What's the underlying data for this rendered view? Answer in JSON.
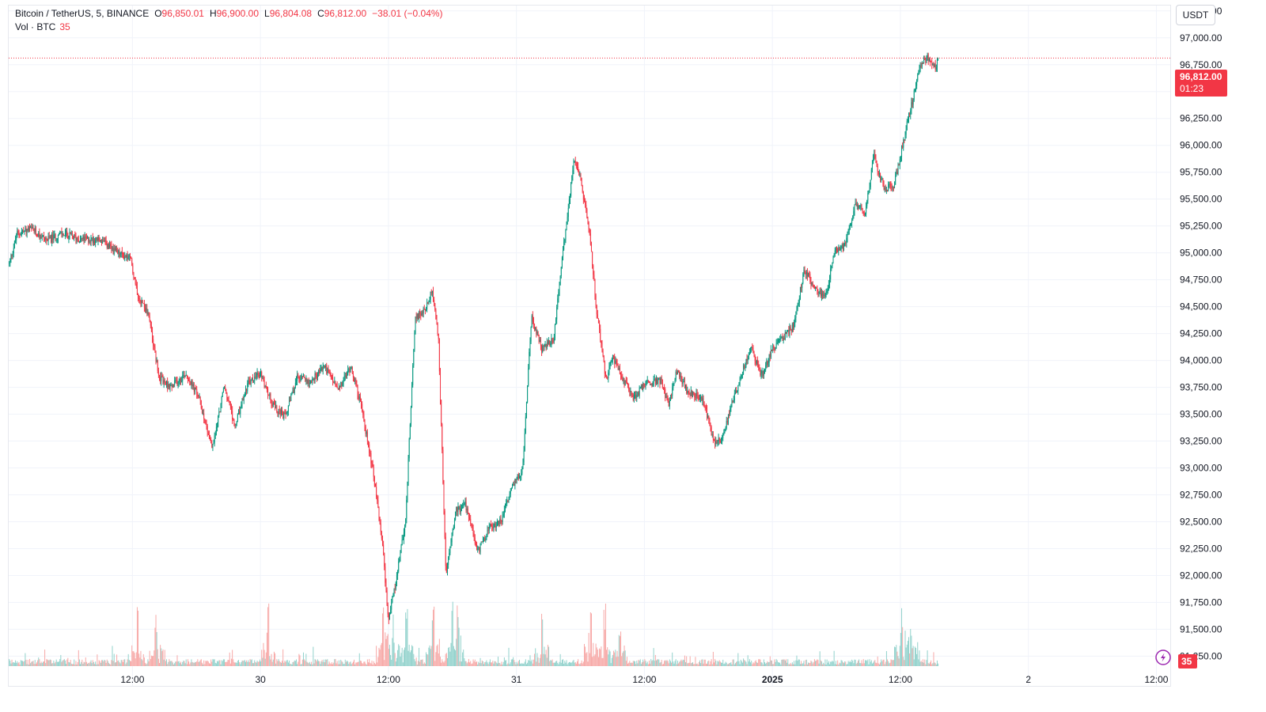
{
  "legend": {
    "symbol": "Bitcoin / TetherUS",
    "interval": "5",
    "exchange": "BINANCE",
    "open_label": "O",
    "open": "96,850.01",
    "high_label": "H",
    "high": "96,900.00",
    "low_label": "L",
    "low": "96,804.08",
    "close_label": "C",
    "close": "96,812.00",
    "change": "−38.01 (−0.04%)",
    "volume_label": "Vol · BTC",
    "volume": "35"
  },
  "currency_button": "USDT",
  "last_price_label": "96,812.00",
  "countdown": "01:23",
  "volume_badge": "35",
  "colors": {
    "up": "#089981",
    "down": "#f23645",
    "up_volume": "#92d2cc",
    "down_volume": "#f7a9a7",
    "grid": "#f0f3fa",
    "price_line": "#f23645"
  },
  "chart_data": {
    "type": "candlestick",
    "symbol": "Bitcoin / TetherUS",
    "timeframe": "5",
    "exchange": "BINANCE",
    "y_axis_ticks": [
      "97,250.00",
      "97,000.00",
      "96,750.00",
      "96,500.00",
      "96,250.00",
      "96,000.00",
      "95,750.00",
      "95,500.00",
      "95,250.00",
      "95,000.00",
      "94,750.00",
      "94,500.00",
      "94,250.00",
      "94,000.00",
      "93,750.00",
      "93,500.00",
      "93,250.00",
      "93,000.00",
      "92,750.00",
      "92,500.00",
      "92,250.00",
      "92,000.00",
      "91,750.00",
      "91,500.00",
      "91,250.00"
    ],
    "y_axis_values": [
      97250,
      97000,
      96750,
      96500,
      96250,
      96000,
      95750,
      95500,
      95250,
      95000,
      94750,
      94500,
      94250,
      94000,
      93750,
      93500,
      93250,
      93000,
      92750,
      92500,
      92250,
      92000,
      91750,
      91500,
      91250
    ],
    "ylim": [
      91150,
      97300
    ],
    "x_axis_ticks": [
      {
        "label": "12:00",
        "hours": 16
      },
      {
        "label": "30",
        "hours": 28
      },
      {
        "label": "12:00",
        "hours": 40
      },
      {
        "label": "31",
        "hours": 52
      },
      {
        "label": "12:00",
        "hours": 64
      },
      {
        "label": "2025",
        "hours": 76,
        "bold": true
      },
      {
        "label": "12:00",
        "hours": 88
      },
      {
        "label": "2",
        "hours": 100
      },
      {
        "label": "12:00",
        "hours": 112
      }
    ],
    "x_range_hours": [
      4.4,
      113.3
    ],
    "last_price": 96812.0,
    "price_path": [
      [
        4.45,
        94900
      ],
      [
        5.2,
        95180
      ],
      [
        6.5,
        95220
      ],
      [
        8.0,
        95120
      ],
      [
        9.5,
        95180
      ],
      [
        11.0,
        95130
      ],
      [
        13.0,
        95120
      ],
      [
        14.5,
        95000
      ],
      [
        15.8,
        94950
      ],
      [
        16.5,
        94620
      ],
      [
        17.5,
        94420
      ],
      [
        18.5,
        93850
      ],
      [
        19.6,
        93750
      ],
      [
        21.0,
        93880
      ],
      [
        22.2,
        93660
      ],
      [
        23.5,
        93180
      ],
      [
        24.6,
        93760
      ],
      [
        25.6,
        93380
      ],
      [
        26.8,
        93780
      ],
      [
        28.0,
        93880
      ],
      [
        29.2,
        93580
      ],
      [
        30.3,
        93470
      ],
      [
        31.5,
        93850
      ],
      [
        32.7,
        93800
      ],
      [
        34.0,
        93950
      ],
      [
        35.3,
        93720
      ],
      [
        36.5,
        93950
      ],
      [
        37.5,
        93550
      ],
      [
        38.5,
        93000
      ],
      [
        39.4,
        92350
      ],
      [
        40.0,
        91580
      ],
      [
        40.8,
        92000
      ],
      [
        41.6,
        92520
      ],
      [
        42.5,
        94380
      ],
      [
        43.4,
        94460
      ],
      [
        44.1,
        94650
      ],
      [
        44.7,
        94180
      ],
      [
        45.4,
        92000
      ],
      [
        46.3,
        92600
      ],
      [
        47.2,
        92650
      ],
      [
        48.4,
        92220
      ],
      [
        49.3,
        92420
      ],
      [
        50.6,
        92520
      ],
      [
        51.6,
        92820
      ],
      [
        52.6,
        93000
      ],
      [
        53.4,
        94400
      ],
      [
        54.4,
        94100
      ],
      [
        55.5,
        94200
      ],
      [
        56.3,
        94950
      ],
      [
        57.4,
        95860
      ],
      [
        58.1,
        95640
      ],
      [
        58.9,
        95150
      ],
      [
        59.5,
        94480
      ],
      [
        60.4,
        93820
      ],
      [
        61.0,
        94030
      ],
      [
        62.0,
        93820
      ],
      [
        63.0,
        93650
      ],
      [
        64.0,
        93780
      ],
      [
        65.5,
        93820
      ],
      [
        66.3,
        93580
      ],
      [
        67.0,
        93900
      ],
      [
        68.0,
        93720
      ],
      [
        69.5,
        93630
      ],
      [
        70.5,
        93250
      ],
      [
        71.3,
        93280
      ],
      [
        72.0,
        93520
      ],
      [
        73.0,
        93850
      ],
      [
        74.0,
        94120
      ],
      [
        75.0,
        93860
      ],
      [
        76.0,
        94100
      ],
      [
        77.0,
        94220
      ],
      [
        78.0,
        94320
      ],
      [
        79.0,
        94850
      ],
      [
        80.0,
        94670
      ],
      [
        81.0,
        94590
      ],
      [
        81.8,
        95000
      ],
      [
        82.8,
        95060
      ],
      [
        83.8,
        95480
      ],
      [
        84.7,
        95360
      ],
      [
        85.5,
        95900
      ],
      [
        86.5,
        95600
      ],
      [
        87.4,
        95620
      ],
      [
        88.3,
        96050
      ],
      [
        89.2,
        96450
      ],
      [
        89.8,
        96750
      ],
      [
        90.6,
        96820
      ],
      [
        91.2,
        96720
      ],
      [
        91.6,
        96812
      ]
    ],
    "volume_spikes_hours": [
      16.5,
      18.2,
      28.7,
      39.5,
      40.4,
      41.7,
      44.2,
      46.0,
      46.5,
      54.4,
      59.0,
      60.3,
      61.7,
      88.1,
      89.0,
      93.4,
      101.2,
      104.5,
      110.6
    ]
  }
}
